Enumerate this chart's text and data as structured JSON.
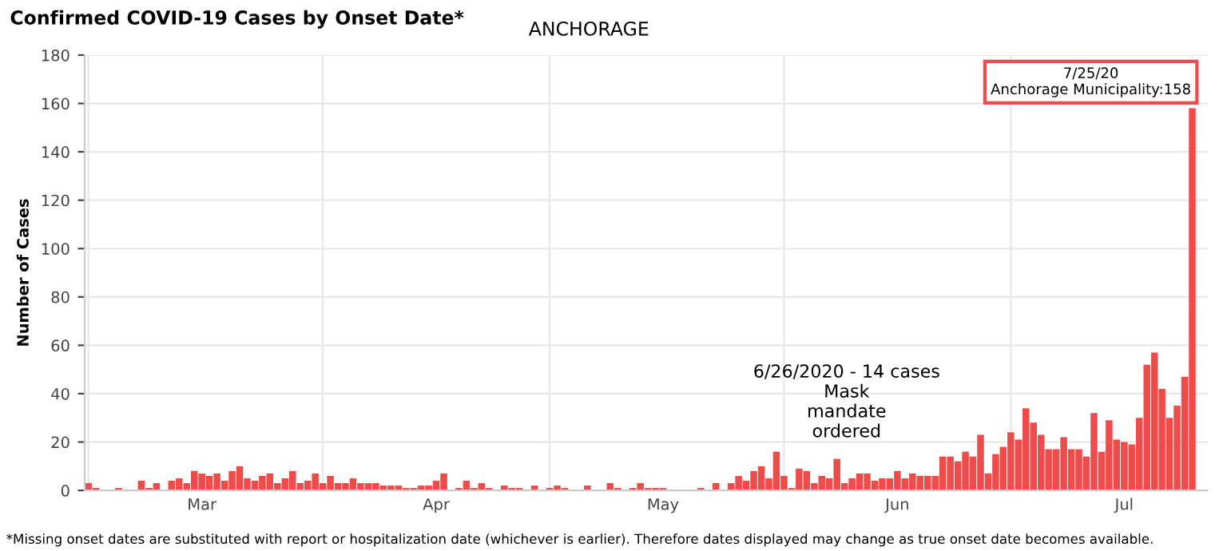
{
  "chart_data": {
    "type": "bar",
    "title": "Confirmed COVID-19 Cases by Onset Date*",
    "subtitle": "ANCHORAGE",
    "ylabel": "Number of Cases",
    "x": [
      "2020-03-01",
      "2020-03-02",
      "2020-03-03",
      "2020-03-04",
      "2020-03-05",
      "2020-03-06",
      "2020-03-07",
      "2020-03-08",
      "2020-03-09",
      "2020-03-10",
      "2020-03-11",
      "2020-03-12",
      "2020-03-13",
      "2020-03-14",
      "2020-03-15",
      "2020-03-16",
      "2020-03-17",
      "2020-03-18",
      "2020-03-19",
      "2020-03-20",
      "2020-03-21",
      "2020-03-22",
      "2020-03-23",
      "2020-03-24",
      "2020-03-25",
      "2020-03-26",
      "2020-03-27",
      "2020-03-28",
      "2020-03-29",
      "2020-03-30",
      "2020-03-31",
      "2020-04-01",
      "2020-04-02",
      "2020-04-03",
      "2020-04-04",
      "2020-04-05",
      "2020-04-06",
      "2020-04-07",
      "2020-04-08",
      "2020-04-09",
      "2020-04-10",
      "2020-04-11",
      "2020-04-12",
      "2020-04-13",
      "2020-04-14",
      "2020-04-15",
      "2020-04-16",
      "2020-04-17",
      "2020-04-18",
      "2020-04-19",
      "2020-04-20",
      "2020-04-21",
      "2020-04-22",
      "2020-04-23",
      "2020-04-24",
      "2020-04-25",
      "2020-04-26",
      "2020-04-27",
      "2020-04-28",
      "2020-04-29",
      "2020-04-30",
      "2020-05-01",
      "2020-05-02",
      "2020-05-03",
      "2020-05-04",
      "2020-05-05",
      "2020-05-06",
      "2020-05-07",
      "2020-05-08",
      "2020-05-09",
      "2020-05-10",
      "2020-05-11",
      "2020-05-12",
      "2020-05-13",
      "2020-05-14",
      "2020-05-15",
      "2020-05-16",
      "2020-05-17",
      "2020-05-18",
      "2020-05-19",
      "2020-05-20",
      "2020-05-21",
      "2020-05-22",
      "2020-05-23",
      "2020-05-24",
      "2020-05-25",
      "2020-05-26",
      "2020-05-27",
      "2020-05-28",
      "2020-05-29",
      "2020-05-30",
      "2020-05-31",
      "2020-06-01",
      "2020-06-02",
      "2020-06-03",
      "2020-06-04",
      "2020-06-05",
      "2020-06-06",
      "2020-06-07",
      "2020-06-08",
      "2020-06-09",
      "2020-06-10",
      "2020-06-11",
      "2020-06-12",
      "2020-06-13",
      "2020-06-14",
      "2020-06-15",
      "2020-06-16",
      "2020-06-17",
      "2020-06-18",
      "2020-06-19",
      "2020-06-20",
      "2020-06-21",
      "2020-06-22",
      "2020-06-23",
      "2020-06-24",
      "2020-06-25",
      "2020-06-26",
      "2020-06-27",
      "2020-06-28",
      "2020-06-29",
      "2020-06-30",
      "2020-07-01",
      "2020-07-02",
      "2020-07-03",
      "2020-07-04",
      "2020-07-05",
      "2020-07-06",
      "2020-07-07",
      "2020-07-08",
      "2020-07-09",
      "2020-07-10",
      "2020-07-11",
      "2020-07-12",
      "2020-07-13",
      "2020-07-14",
      "2020-07-15",
      "2020-07-16",
      "2020-07-17",
      "2020-07-18",
      "2020-07-19",
      "2020-07-20",
      "2020-07-21",
      "2020-07-22",
      "2020-07-23",
      "2020-07-24",
      "2020-07-25"
    ],
    "values": [
      3,
      1,
      0,
      0,
      1,
      0,
      0,
      4,
      1,
      3,
      0,
      4,
      5,
      3,
      8,
      7,
      6,
      7,
      4,
      8,
      10,
      5,
      4,
      6,
      7,
      3,
      5,
      8,
      3,
      4,
      7,
      3,
      6,
      3,
      3,
      5,
      3,
      3,
      3,
      2,
      2,
      2,
      1,
      1,
      2,
      2,
      4,
      7,
      0,
      1,
      4,
      1,
      3,
      1,
      0,
      2,
      1,
      1,
      0,
      2,
      0,
      1,
      2,
      1,
      0,
      0,
      2,
      0,
      0,
      3,
      1,
      0,
      1,
      3,
      1,
      1,
      1,
      0,
      0,
      0,
      0,
      1,
      0,
      3,
      0,
      3,
      6,
      4,
      8,
      10,
      5,
      16,
      6,
      1,
      9,
      8,
      3,
      6,
      5,
      13,
      3,
      5,
      7,
      7,
      4,
      5,
      5,
      8,
      5,
      7,
      6,
      6,
      6,
      14,
      14,
      12,
      16,
      14,
      23,
      7,
      15,
      18,
      24,
      21,
      34,
      28,
      23,
      17,
      17,
      22,
      17,
      17,
      14,
      32,
      16,
      29,
      21,
      20,
      19,
      30,
      52,
      57,
      42,
      30,
      35,
      47,
      158
    ],
    "color": "#ee4b4b",
    "xlim": [
      "2020-02-29T12:00",
      "2020-07-27"
    ],
    "xticks": [
      {
        "value": "2020-03-01",
        "label": null
      },
      {
        "value": "2020-04-01",
        "label": null
      },
      {
        "value": "2020-05-01",
        "label": null
      },
      {
        "value": "2020-06-01",
        "label": null
      },
      {
        "value": "2020-07-01",
        "label": null
      },
      {
        "value": "2020-03-16",
        "label": "Mar"
      },
      {
        "value": "2020-04-16",
        "label": "Apr"
      },
      {
        "value": "2020-05-16",
        "label": "May"
      },
      {
        "value": "2020-06-16",
        "label": "Jun"
      },
      {
        "value": "2020-07-16",
        "label": "Jul"
      }
    ],
    "ylim": [
      0,
      180
    ],
    "yticks": [
      0,
      20,
      40,
      60,
      80,
      100,
      120,
      140,
      160,
      180
    ],
    "grid": true,
    "legend": false,
    "annotations": [
      "6/26/2020 - 14 cases\nMask\nmandate\nordered",
      {
        "text": "7/25/20\nAnchorage Municipality:158",
        "x": "2020-07-25",
        "y": 158
      },
      "*Missing onset dates are substituted with report or hospitalization date (whichever is earlier). Therefore dates displayed may change as true onset date becomes available."
    ]
  }
}
